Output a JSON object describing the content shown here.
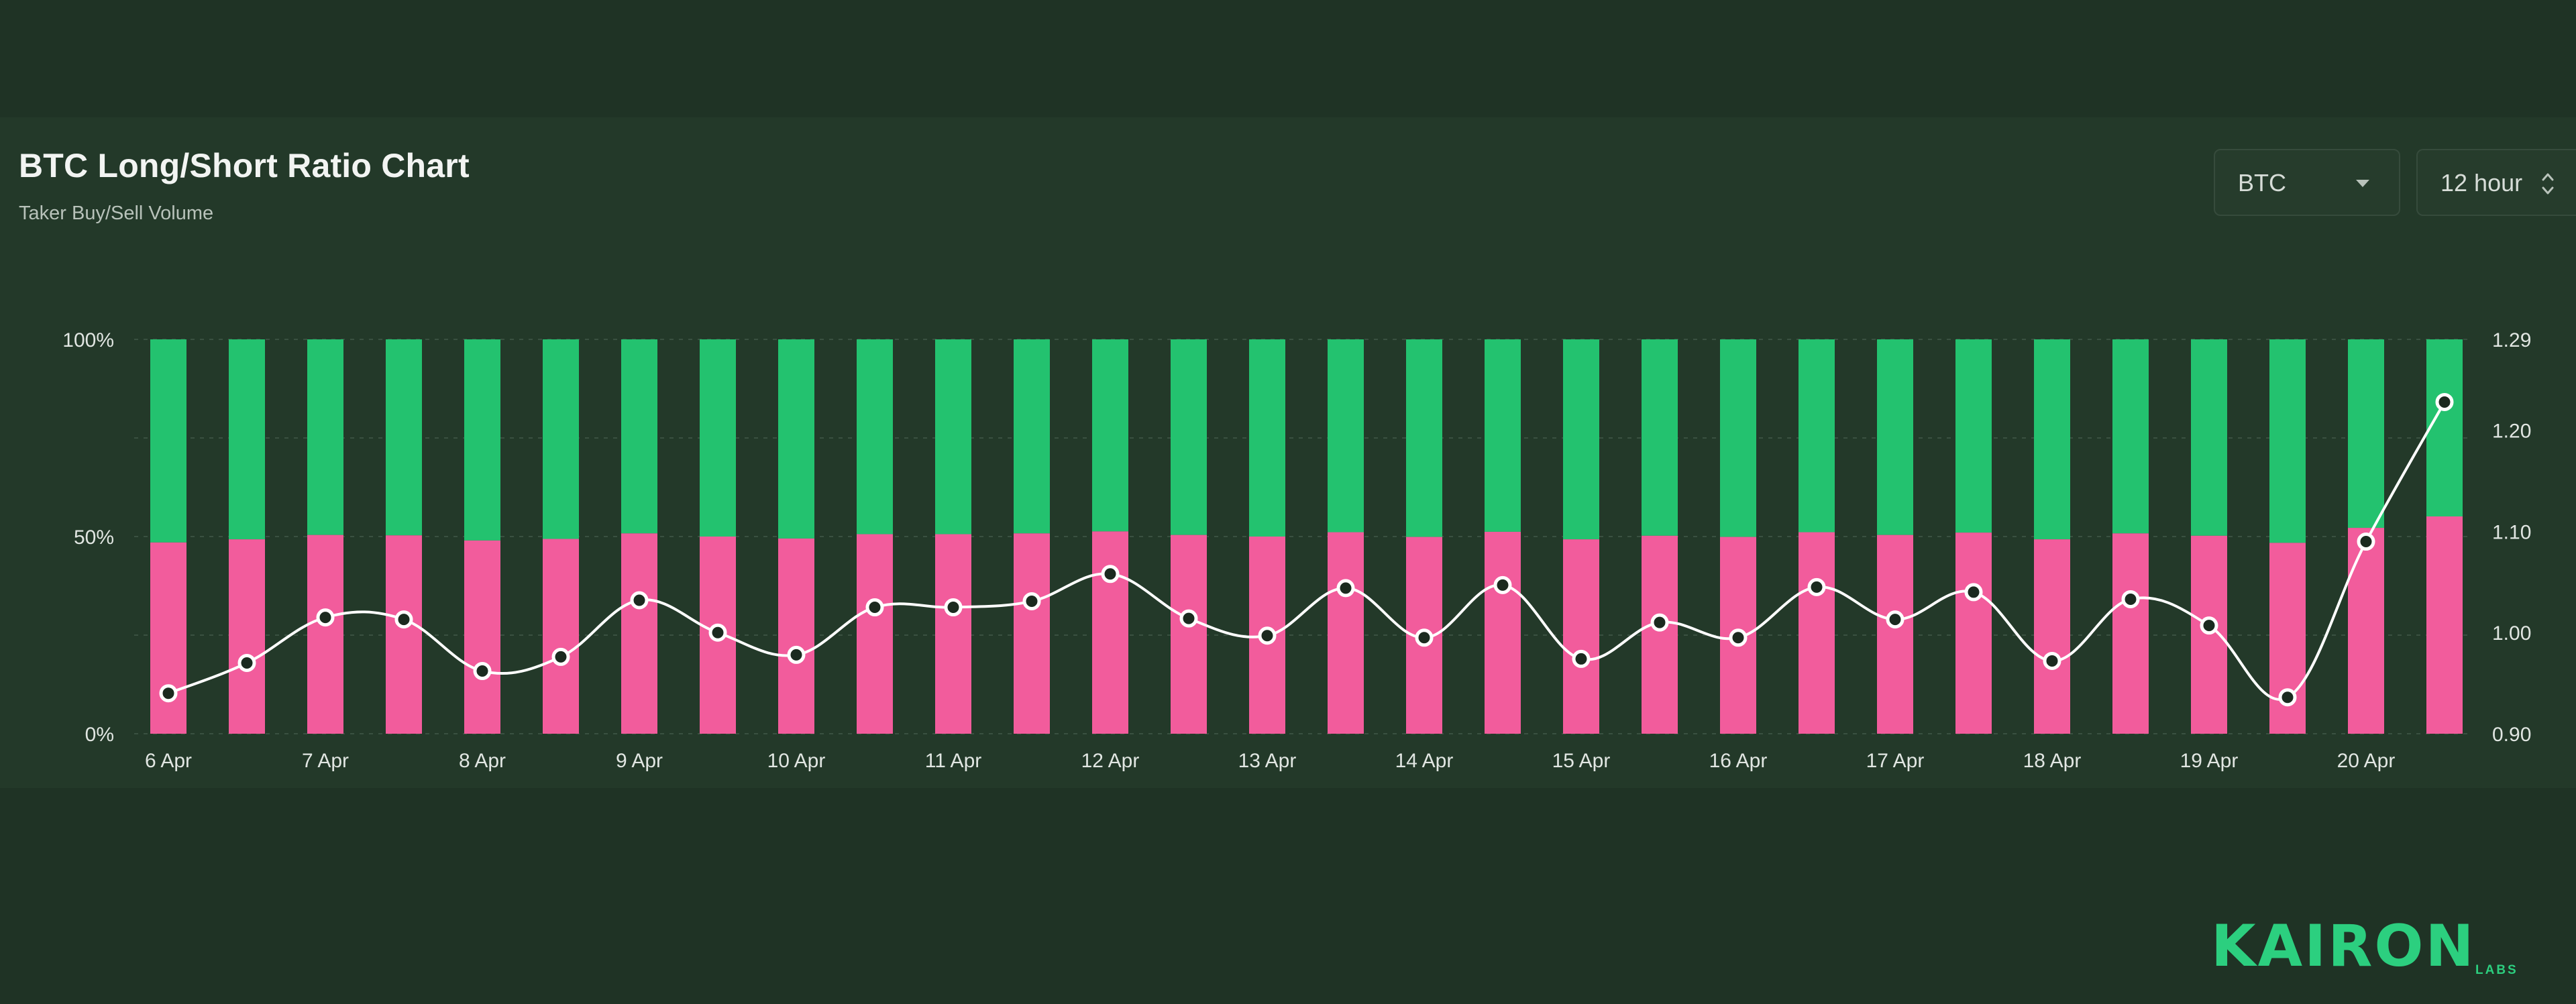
{
  "header": {
    "title": "BTC Long/Short Ratio Chart",
    "subtitle": "Taker Buy/Sell Volume"
  },
  "controls": {
    "coin_select": "BTC",
    "interval_select": "12 hour"
  },
  "brand": {
    "logo": "KAIRON",
    "logo_sub": "LABS"
  },
  "colors": {
    "long": "#23c26f",
    "short": "#f25c9c",
    "ratio_line": "#ffffff",
    "background": "#233929"
  },
  "chart_data": {
    "type": "bar",
    "stacked": true,
    "y_left": {
      "range": [
        0,
        100
      ],
      "ticks": [
        "0%",
        "50%",
        "100%"
      ]
    },
    "y_right": {
      "range": [
        0.9,
        1.29
      ],
      "ticks": [
        "0.90",
        "1.00",
        "1.10",
        "1.20",
        "1.29"
      ]
    },
    "x_ticks": [
      "6 Apr",
      "7 Apr",
      "8 Apr",
      "9 Apr",
      "10 Apr",
      "11 Apr",
      "12 Apr",
      "13 Apr",
      "14 Apr",
      "15 Apr",
      "16 Apr",
      "17 Apr",
      "18 Apr",
      "19 Apr",
      "20 Apr"
    ],
    "short_pct": [
      48.5,
      49.3,
      50.4,
      50.3,
      49.0,
      49.4,
      50.8,
      50.0,
      49.5,
      50.6,
      50.6,
      50.8,
      51.3,
      50.4,
      50.0,
      51.1,
      49.9,
      51.2,
      49.3,
      50.2,
      49.9,
      51.1,
      50.4,
      51.0,
      49.3,
      50.8,
      50.2,
      48.4,
      52.2,
      55.1
    ],
    "ratio_line": {
      "values": [
        0.94,
        0.97,
        1.015,
        1.013,
        0.962,
        0.976,
        1.032,
        1.0,
        0.978,
        1.025,
        1.025,
        1.031,
        1.058,
        1.014,
        0.997,
        1.044,
        0.995,
        1.047,
        0.974,
        1.01,
        0.995,
        1.045,
        1.013,
        1.04,
        0.972,
        1.033,
        1.007,
        0.936,
        1.09,
        1.228
      ]
    }
  }
}
